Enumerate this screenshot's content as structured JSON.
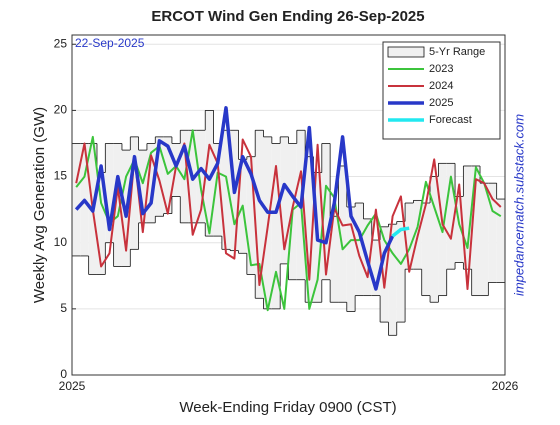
{
  "chart_data": {
    "type": "line",
    "title": "ERCOT Wind Gen Ending 26-Sep-2025",
    "annotation": "22-Sep-2025",
    "source": "impedancematch.substack.com",
    "x_label": "Week-Ending Friday 0900 (CST)",
    "y_label": "Weekly Avg Generation (GW)",
    "xlim": [
      0,
      52
    ],
    "xticks": [
      {
        "value": 0,
        "label": "2025"
      },
      {
        "value": 52,
        "label": "2026"
      }
    ],
    "ylim": [
      0,
      25.7
    ],
    "yticks": [
      0,
      5,
      10,
      15,
      20,
      25
    ],
    "grid": true,
    "legend": "upper right",
    "range": {
      "name": "5-Yr Range",
      "color": "#f0f0f0",
      "min": [
        9,
        9,
        7.6,
        7.6,
        10,
        8.2,
        8.2,
        9.5,
        11.5,
        11.5,
        12,
        12.2,
        13.5,
        11.5,
        11.5,
        11.5,
        10.5,
        10.5,
        9.5,
        9.4,
        9.2,
        7.6,
        5.8,
        5,
        5,
        8.4,
        7.2,
        7.2,
        5.5,
        5.5,
        7.2,
        5.5,
        5.5,
        4.8,
        6,
        6,
        6,
        4,
        3,
        4,
        8,
        8,
        6,
        5.5,
        6,
        8,
        8.5,
        8,
        6,
        6,
        7,
        7
      ],
      "max": [
        17.5,
        17.5,
        17.5,
        15.3,
        17.5,
        17.5,
        17,
        18,
        17,
        17.5,
        18,
        18,
        17.5,
        18.5,
        18.5,
        18.5,
        20,
        17.5,
        18.5,
        18.5,
        16.3,
        16.5,
        18.5,
        18,
        17.5,
        18,
        17.5,
        18.5,
        16.5,
        15.3,
        17.5,
        12,
        15.8,
        12.7,
        13,
        11.8,
        10.2,
        11.2,
        11.4,
        11.6,
        13,
        13.2,
        13,
        15,
        16,
        16,
        13.5,
        15.8,
        15.8,
        14.5,
        14.5,
        13.3
      ]
    },
    "series": [
      {
        "name": "2023",
        "color": "#3cc43c",
        "width": 2,
        "values": [
          14.2,
          15,
          18,
          13,
          11.5,
          12,
          15,
          16.3,
          14.5,
          16.8,
          17.3,
          15.2,
          15.8,
          14.8,
          18.5,
          14,
          10.7,
          15.3,
          15,
          11.4,
          12.8,
          8.3,
          8.4,
          4.9,
          7.8,
          5,
          12.5,
          13,
          5,
          7.2,
          14.3,
          13.4,
          9.5,
          10.2,
          10.2,
          11.3,
          12.2,
          10.2,
          9.2,
          8.4,
          9.5,
          11.2,
          14.6,
          12.7,
          10.8,
          15,
          11.4,
          9.6,
          15.7,
          14.5,
          12.4,
          12
        ]
      },
      {
        "name": "2024",
        "color": "#c8323c",
        "width": 2,
        "values": [
          14.5,
          17.5,
          12.5,
          8.2,
          9.2,
          14.2,
          9.4,
          16.5,
          10.8,
          16.6,
          14.7,
          12.2,
          15.8,
          17.5,
          10.6,
          12.5,
          17.4,
          16,
          9.2,
          8.8,
          17.8,
          16.5,
          6.8,
          11.2,
          15.8,
          9.5,
          12.7,
          15.4,
          7.2,
          17.4,
          7.6,
          12.6,
          11.3,
          11.4,
          9,
          7.4,
          12.5,
          6.6,
          12,
          13.5,
          7.8,
          10.5,
          12.9,
          16.3,
          11.4,
          10.3,
          14.4,
          6.5,
          14.8,
          14.5,
          13.3,
          12.7
        ]
      },
      {
        "name": "2025",
        "color": "#2838c8",
        "width": 3.5,
        "values": [
          12.5,
          13.2,
          12.4,
          15.8,
          11,
          15,
          12,
          16.5,
          12.2,
          13,
          17.7,
          17.3,
          15.8,
          17.3,
          14.8,
          15.6,
          14.8,
          16,
          20.2,
          13.8,
          16.5,
          15.2,
          13.2,
          12.3,
          12.3,
          14.4,
          13.5,
          12.7,
          18.7,
          10.2,
          10,
          13,
          18,
          12,
          10.8,
          8.6,
          6.5,
          9.2,
          10.5,
          null,
          null,
          null,
          null,
          null,
          null,
          null,
          null,
          null,
          null,
          null,
          null,
          null
        ]
      },
      {
        "name": "Forecast",
        "color": "#22e8f0",
        "width": 3.5,
        "values": [
          null,
          null,
          null,
          null,
          null,
          null,
          null,
          null,
          null,
          null,
          null,
          null,
          null,
          null,
          null,
          null,
          null,
          null,
          null,
          null,
          null,
          null,
          null,
          null,
          null,
          null,
          null,
          null,
          null,
          null,
          null,
          null,
          null,
          null,
          null,
          null,
          null,
          null,
          10.5,
          11,
          11.1,
          null,
          null,
          null,
          null,
          null,
          null,
          null,
          null,
          null,
          null,
          null
        ]
      }
    ]
  }
}
